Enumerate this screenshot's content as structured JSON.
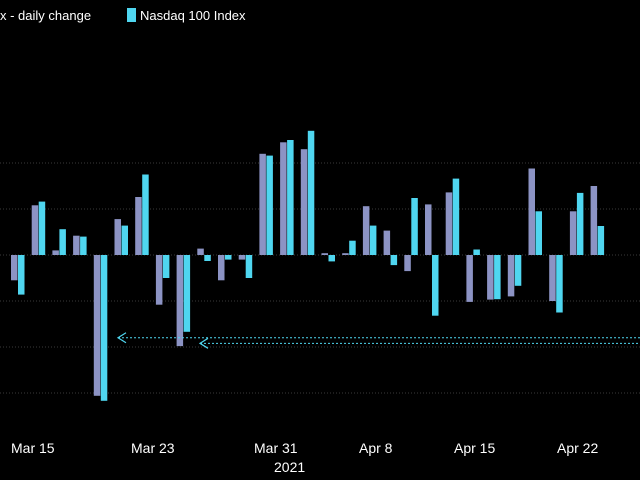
{
  "chart_data": {
    "type": "bar",
    "legend": [
      {
        "label": "x - daily change",
        "color": "#8c93c4"
      },
      {
        "label": "Nasdaq 100 Index",
        "color": "#4fd6f0"
      }
    ],
    "x_ticks": [
      "Mar 15",
      "Mar 23",
      "Mar 31",
      "Apr 8",
      "Apr 15",
      "Apr 22"
    ],
    "x_year_label": "2021",
    "ylim": [
      -3.3,
      2.6
    ],
    "series": [
      {
        "name": "x - daily change",
        "values": [
          -0.55,
          1.08,
          0.1,
          0.42,
          -3.06,
          0.78,
          1.26,
          -1.08,
          -1.98,
          0.14,
          -0.55,
          -0.1,
          2.2,
          2.45,
          2.3,
          0.04,
          0.04,
          1.06,
          0.53,
          -0.35,
          1.1,
          1.36,
          -1.02,
          -0.97,
          -0.9,
          1.88,
          -1.0,
          0.95,
          1.5
        ]
      },
      {
        "name": "Nasdaq 100 Index",
        "values": [
          -0.86,
          1.16,
          0.56,
          0.4,
          -3.17,
          0.64,
          1.75,
          -0.5,
          -1.67,
          -0.13,
          -0.1,
          -0.5,
          2.16,
          2.5,
          2.7,
          -0.14,
          0.31,
          0.64,
          -0.22,
          1.24,
          -1.32,
          1.66,
          0.12,
          -0.96,
          -0.67,
          0.95,
          -1.25,
          1.35,
          0.63
        ]
      }
    ],
    "reference_lines": [
      {
        "y": -1.8,
        "style": "dotted",
        "arrow": "left"
      },
      {
        "y": -1.92,
        "style": "dotted",
        "arrow": "left"
      }
    ],
    "grid": "horizontal dotted"
  }
}
